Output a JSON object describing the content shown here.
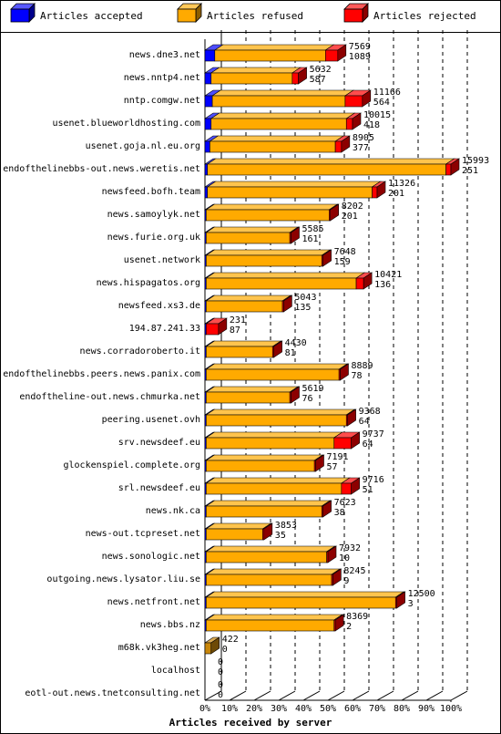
{
  "chart_data": {
    "type": "bar",
    "orientation": "horizontal",
    "stacked": true,
    "xlabel": "Articles received by server",
    "xlim": [
      0,
      100
    ],
    "xticks": [
      "0%",
      "10%",
      "20%",
      "30%",
      "40%",
      "50%",
      "60%",
      "70%",
      "80%",
      "90%",
      "100%"
    ],
    "grid": true,
    "legend_position": "top",
    "series": [
      {
        "name": "Articles accepted",
        "color": "#0000ff"
      },
      {
        "name": "Articles refused",
        "color": "#ffaa00"
      },
      {
        "name": "Articles rejected",
        "color": "#ff0000"
      }
    ],
    "rows": [
      {
        "server": "news.dne3.net",
        "total": "7569",
        "rejected": "1089",
        "pct": [
          4,
          45,
          5
        ]
      },
      {
        "server": "news.nntp4.net",
        "total": "5632",
        "rejected": "587",
        "pct": [
          2.5,
          33,
          2.5
        ]
      },
      {
        "server": "nntp.comgw.net",
        "total": "11166",
        "rejected": "564",
        "pct": [
          3,
          54,
          7
        ]
      },
      {
        "server": "usenet.blueworldhosting.com",
        "total": "10015",
        "rejected": "418",
        "pct": [
          2.5,
          55,
          2.5
        ]
      },
      {
        "server": "usenet.goja.nl.eu.org",
        "total": "8905",
        "rejected": "377",
        "pct": [
          2,
          51,
          2.5
        ]
      },
      {
        "server": "endofthelinebbs-out.news.weretis.net",
        "total": "15993",
        "rejected": "251",
        "pct": [
          1,
          97,
          2
        ]
      },
      {
        "server": "newsfeed.bofh.team",
        "total": "11326",
        "rejected": "201",
        "pct": [
          1,
          67,
          2
        ]
      },
      {
        "server": "news.samoylyk.net",
        "total": "8202",
        "rejected": "201",
        "pct": [
          0.5,
          50,
          0.5
        ]
      },
      {
        "server": "news.furie.org.uk",
        "total": "5585",
        "rejected": "161",
        "pct": [
          0.5,
          34,
          0.5
        ]
      },
      {
        "server": "usenet.network",
        "total": "7648",
        "rejected": "159",
        "pct": [
          0.5,
          47,
          0.5
        ]
      },
      {
        "server": "news.hispagatos.org",
        "total": "10421",
        "rejected": "136",
        "pct": [
          0.5,
          61,
          3
        ]
      },
      {
        "server": "newsfeed.xs3.de",
        "total": "5043",
        "rejected": "135",
        "pct": [
          0.5,
          31,
          0.5
        ]
      },
      {
        "server": "194.87.241.33",
        "total": "231",
        "rejected": "87",
        "pct": [
          0.5,
          0,
          5
        ]
      },
      {
        "server": "news.corradoroberto.it",
        "total": "4430",
        "rejected": "81",
        "pct": [
          0.5,
          27,
          0.5
        ]
      },
      {
        "server": "endofthelinebbs.peers.news.panix.com",
        "total": "8889",
        "rejected": "78",
        "pct": [
          0.5,
          54,
          0.5
        ]
      },
      {
        "server": "endoftheline-out.news.chmurka.net",
        "total": "5619",
        "rejected": "76",
        "pct": [
          0.5,
          34,
          0.5
        ]
      },
      {
        "server": "peering.usenet.ovh",
        "total": "9368",
        "rejected": "64",
        "pct": [
          0.5,
          57,
          0.5
        ]
      },
      {
        "server": "srv.newsdeef.eu",
        "total": "9737",
        "rejected": "64",
        "pct": [
          0.5,
          52,
          7
        ]
      },
      {
        "server": "glockenspiel.complete.org",
        "total": "7191",
        "rejected": "57",
        "pct": [
          0.5,
          44,
          0.5
        ]
      },
      {
        "server": "srl.newsdeef.eu",
        "total": "9716",
        "rejected": "51",
        "pct": [
          0.5,
          55,
          4
        ]
      },
      {
        "server": "news.nk.ca",
        "total": "7623",
        "rejected": "38",
        "pct": [
          0.5,
          47,
          0.5
        ]
      },
      {
        "server": "news-out.tcpreset.net",
        "total": "3853",
        "rejected": "35",
        "pct": [
          0.5,
          23,
          0.5
        ]
      },
      {
        "server": "news.sonologic.net",
        "total": "7932",
        "rejected": "10",
        "pct": [
          0.5,
          49,
          0.5
        ]
      },
      {
        "server": "outgoing.news.lysator.liu.se",
        "total": "8245",
        "rejected": "9",
        "pct": [
          0.5,
          51,
          0.5
        ]
      },
      {
        "server": "news.netfront.net",
        "total": "12500",
        "rejected": "3",
        "pct": [
          0.5,
          77,
          0.5
        ]
      },
      {
        "server": "news.bbs.nz",
        "total": "8369",
        "rejected": "2",
        "pct": [
          0.5,
          52,
          0.5
        ]
      },
      {
        "server": "m68k.vk3heg.net",
        "total": "422",
        "rejected": "0",
        "pct": [
          0,
          2.5,
          0
        ],
        "shade": "dark"
      },
      {
        "server": "localhost",
        "total": "0",
        "rejected": "0",
        "pct": [
          0,
          0,
          0
        ]
      },
      {
        "server": "eotl-out.news.tnetconsulting.net",
        "total": "0",
        "rejected": "0",
        "pct": [
          0,
          0,
          0
        ]
      }
    ]
  }
}
